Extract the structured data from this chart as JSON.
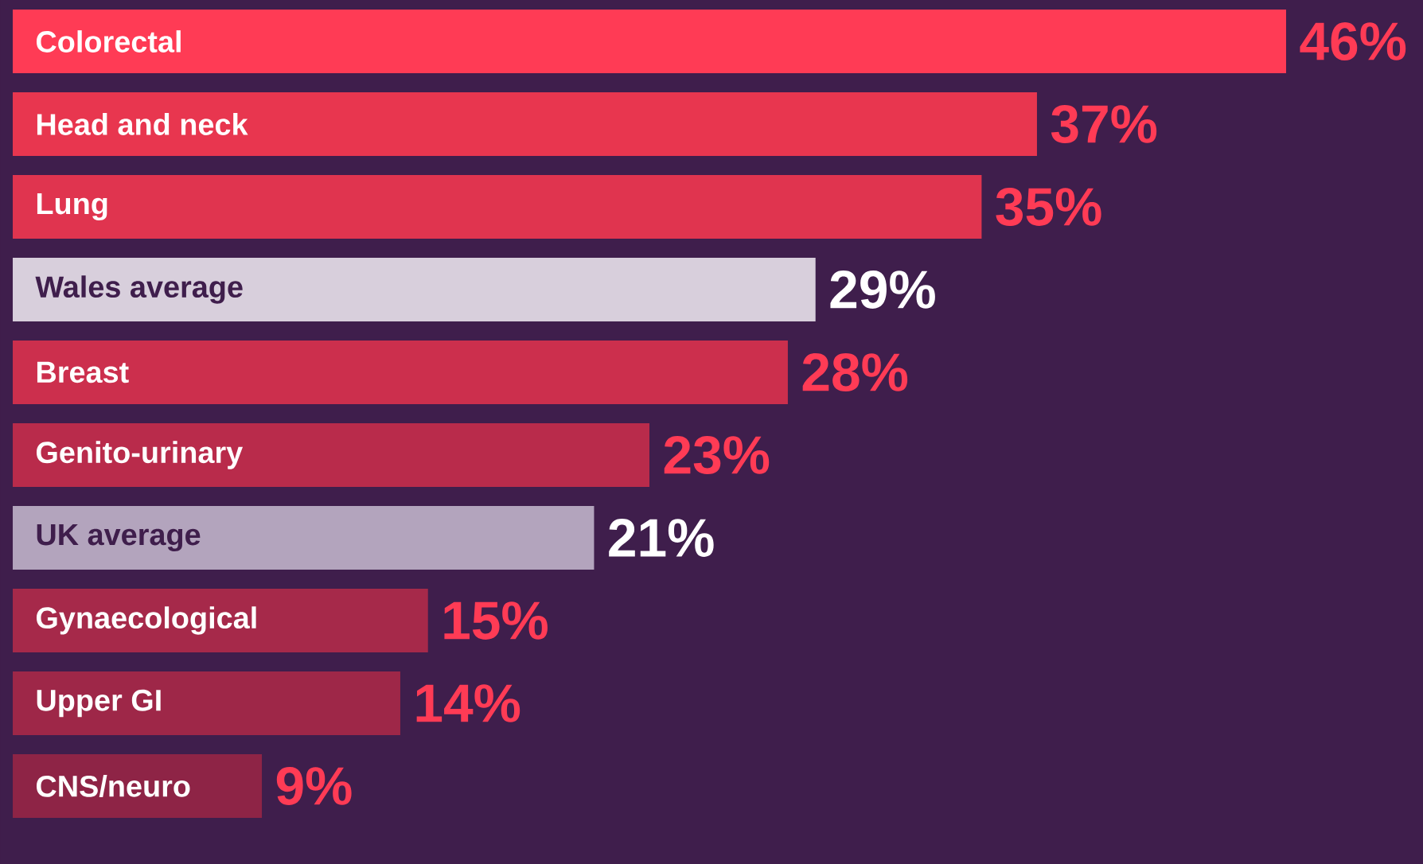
{
  "chart_data": {
    "type": "bar",
    "orientation": "horizontal",
    "categories": [
      "Colorectal",
      "Head and neck",
      "Lung",
      "Wales average",
      "Breast",
      "Genito-urinary",
      "UK average",
      "Gynaecological",
      "Upper GI",
      "CNS/neuro"
    ],
    "values": [
      46,
      37,
      35,
      29,
      28,
      23,
      21,
      15,
      14,
      9
    ],
    "value_labels": [
      "46%",
      "37%",
      "35%",
      "29%",
      "28%",
      "23%",
      "21%",
      "15%",
      "14%",
      "9%"
    ],
    "colors": [
      "#ff3b55",
      "#e8364f",
      "#e0344f",
      "#d8cfdc",
      "#cc2f4d",
      "#b92b4b",
      "#b3a4bd",
      "#a6294a",
      "#9e2748",
      "#8e2446"
    ]
  }
}
